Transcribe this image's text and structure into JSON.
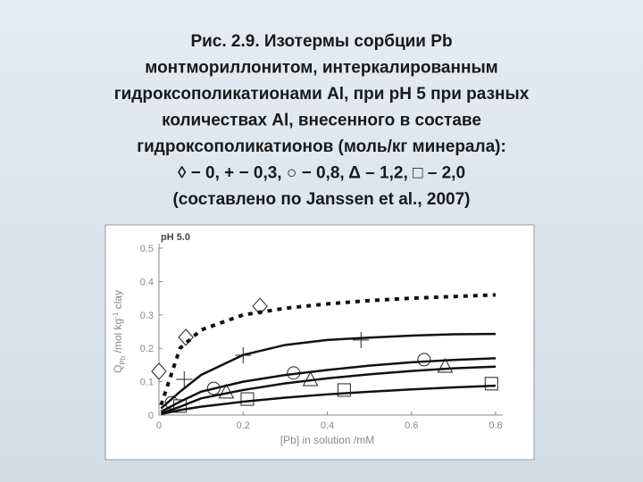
{
  "slide": {
    "title_lines": [
      "Рис. 2.9. Изотермы сорбции Pb",
      "монтмориллонитом, интеркалированным",
      "гидроксополикатионами Al, при pH 5 при разных",
      "количествах Al, внесенного в составе",
      "гидроксополикатионов (моль/кг минерала):",
      "◊ − 0, + − 0,3,  ○ − 0,8, Δ – 1,2, □ – 2,0",
      "(составлено по Janssen et al., 2007)"
    ]
  },
  "chart_data": {
    "type": "scatter",
    "annotation": "pH 5.0",
    "xlabel": "[Pb] in solution /mM",
    "ylabel": {
      "main": "Q",
      "sub": "Pb",
      "rest": " /mol kg",
      "sup": "-1",
      "end": " clay"
    },
    "xlim": [
      0,
      0.8
    ],
    "ylim": [
      0,
      0.5
    ],
    "xticks": [
      0,
      0.2,
      0.4,
      0.6,
      0.8
    ],
    "yticks": [
      0,
      0.1,
      0.2,
      0.3,
      0.4,
      0.5
    ],
    "series": [
      {
        "marker": "diamond",
        "color": "#222222",
        "x": [
          0.0,
          0.064,
          0.24
        ],
        "values": [
          0.131,
          0.233,
          0.326
        ]
      },
      {
        "marker": "plus",
        "color": "#222222",
        "x": [
          0.06,
          0.2,
          0.48
        ],
        "values": [
          0.107,
          0.179,
          0.225
        ]
      },
      {
        "marker": "circle",
        "color": "#222222",
        "x": [
          0.03,
          0.13,
          0.32,
          0.63
        ],
        "values": [
          0.037,
          0.08,
          0.126,
          0.166
        ]
      },
      {
        "marker": "triangle",
        "color": "#222222",
        "x": [
          0.16,
          0.36,
          0.68
        ],
        "values": [
          0.07,
          0.107,
          0.147
        ]
      },
      {
        "marker": "square",
        "color": "#222222",
        "x": [
          0.05,
          0.21,
          0.44,
          0.79
        ],
        "values": [
          0.027,
          0.048,
          0.075,
          0.094
        ]
      },
      {
        "line": "dotted",
        "color": "#111111",
        "x": [
          0.005,
          0.05,
          0.1,
          0.2,
          0.3,
          0.4,
          0.5,
          0.6,
          0.7,
          0.8
        ],
        "values": [
          0.03,
          0.2,
          0.255,
          0.3,
          0.32,
          0.333,
          0.343,
          0.35,
          0.355,
          0.36
        ]
      },
      {
        "line": "solid",
        "color": "#111111",
        "x": [
          0.005,
          0.05,
          0.1,
          0.2,
          0.3,
          0.4,
          0.5,
          0.6,
          0.7,
          0.8
        ],
        "values": [
          0.02,
          0.07,
          0.12,
          0.18,
          0.21,
          0.225,
          0.232,
          0.238,
          0.242,
          0.243
        ]
      },
      {
        "line": "solid",
        "color": "#111111",
        "x": [
          0.005,
          0.05,
          0.1,
          0.2,
          0.3,
          0.4,
          0.5,
          0.6,
          0.7,
          0.8
        ],
        "values": [
          0.01,
          0.04,
          0.07,
          0.1,
          0.12,
          0.135,
          0.148,
          0.158,
          0.165,
          0.17
        ]
      },
      {
        "line": "solid",
        "color": "#111111",
        "x": [
          0.005,
          0.05,
          0.1,
          0.2,
          0.3,
          0.4,
          0.5,
          0.6,
          0.7,
          0.8
        ],
        "values": [
          0.005,
          0.025,
          0.05,
          0.075,
          0.095,
          0.11,
          0.122,
          0.132,
          0.14,
          0.145
        ]
      },
      {
        "line": "solid",
        "color": "#111111",
        "x": [
          0.005,
          0.05,
          0.1,
          0.2,
          0.3,
          0.4,
          0.5,
          0.6,
          0.7,
          0.8
        ],
        "values": [
          0.003,
          0.015,
          0.025,
          0.04,
          0.052,
          0.062,
          0.07,
          0.077,
          0.083,
          0.088
        ]
      }
    ]
  }
}
